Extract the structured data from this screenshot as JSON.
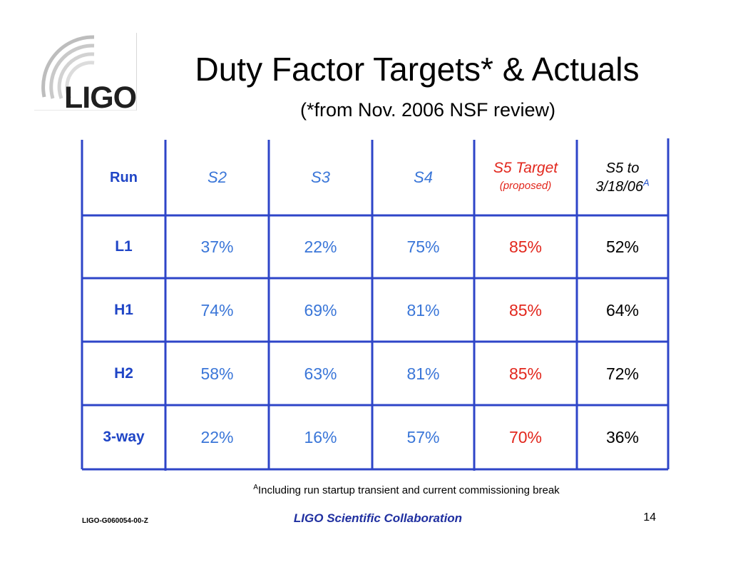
{
  "logo": {
    "text": "LIGO"
  },
  "title": "Duty Factor Targets* & Actuals",
  "subtitle": "(*from Nov. 2006 NSF review)",
  "table": {
    "headers": {
      "run": "Run",
      "s2": "S2",
      "s3": "S3",
      "s4": "S4",
      "s5_target": "S5 Target",
      "s5_target_note": "(proposed)",
      "s5_actual_line1": "S5 to",
      "s5_actual_line2": "3/18/06",
      "s5_actual_sup": "A"
    },
    "rows": [
      {
        "label": "L1",
        "s2": "37%",
        "s3": "22%",
        "s4": "75%",
        "target": "85%",
        "actual": "52%"
      },
      {
        "label": "H1",
        "s2": "74%",
        "s3": "69%",
        "s4": "81%",
        "target": "85%",
        "actual": "64%"
      },
      {
        "label": "H2",
        "s2": "58%",
        "s3": "63%",
        "s4": "81%",
        "target": "85%",
        "actual": "72%"
      },
      {
        "label": "3-way",
        "s2": "22%",
        "s3": "16%",
        "s4": "57%",
        "target": "70%",
        "actual": "36%"
      }
    ],
    "line_color": "#2e45c8"
  },
  "footnote": {
    "sup": "A",
    "text": "Including run startup transient and current commissioning break"
  },
  "footer": {
    "doc_id": "LIGO-G060054-00-Z",
    "collaboration": "LIGO Scientific Collaboration",
    "page_number": "14"
  }
}
